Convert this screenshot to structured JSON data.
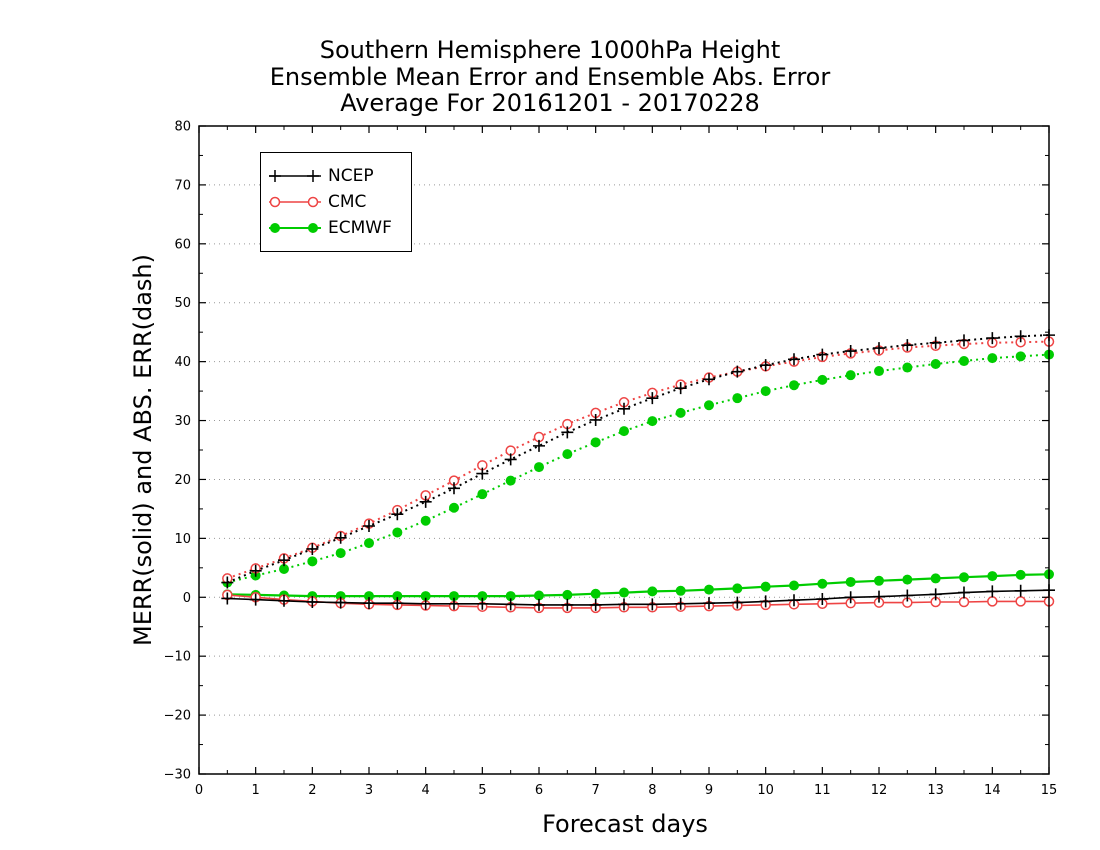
{
  "chart_data": {
    "type": "line",
    "title": [
      "Southern Hemisphere 1000hPa Height",
      "Ensemble Mean Error and Ensemble Abs. Error",
      "Average For 20161201 - 20170228"
    ],
    "xlabel": "Forecast days",
    "ylabel": "MERR(solid) and ABS. ERR(dash)",
    "xlim": [
      0,
      15
    ],
    "ylim": [
      -30,
      80
    ],
    "x_ticks": [
      "0",
      "1",
      "2",
      "3",
      "4",
      "5",
      "6",
      "7",
      "8",
      "9",
      "10",
      "11",
      "12",
      "13",
      "14",
      "15"
    ],
    "y_ticks": [
      "80",
      "70",
      "60",
      "50",
      "40",
      "30",
      "20",
      "10",
      "0",
      "−10",
      "−20",
      "−30"
    ],
    "grid": "horizontal dotted",
    "legend_position": "top-left",
    "x": [
      0.5,
      1,
      1.5,
      2,
      2.5,
      3,
      3.5,
      4,
      4.5,
      5,
      5.5,
      6,
      6.5,
      7,
      7.5,
      8,
      8.5,
      9,
      9.5,
      10,
      10.5,
      11,
      11.5,
      12,
      12.5,
      13,
      13.5,
      14,
      14.5,
      15
    ],
    "series": [
      {
        "name": "NCEP",
        "color": "#000000",
        "marker": "plus",
        "mean_error_solid": [
          -0.2,
          -0.4,
          -0.6,
          -0.8,
          -0.9,
          -1.0,
          -1.0,
          -1.1,
          -1.1,
          -1.1,
          -1.2,
          -1.3,
          -1.3,
          -1.3,
          -1.2,
          -1.2,
          -1.1,
          -1.0,
          -0.9,
          -0.7,
          -0.5,
          -0.3,
          0.0,
          0.1,
          0.3,
          0.5,
          0.8,
          1.0,
          1.1,
          1.2
        ],
        "abs_error_dash": [
          2.5,
          4.5,
          6.3,
          8.2,
          10.1,
          12.1,
          14.1,
          16.2,
          18.5,
          21.0,
          23.4,
          25.7,
          28.0,
          30.1,
          32.0,
          33.8,
          35.5,
          37.0,
          38.3,
          39.4,
          40.4,
          41.2,
          41.8,
          42.3,
          42.8,
          43.2,
          43.6,
          44.0,
          44.3,
          44.5
        ]
      },
      {
        "name": "CMC",
        "color": "#ee4444",
        "marker": "open-circle",
        "mean_error_solid": [
          0.4,
          0.0,
          -0.4,
          -0.7,
          -1.0,
          -1.2,
          -1.3,
          -1.4,
          -1.5,
          -1.6,
          -1.7,
          -1.8,
          -1.8,
          -1.8,
          -1.7,
          -1.7,
          -1.6,
          -1.5,
          -1.4,
          -1.3,
          -1.2,
          -1.1,
          -1.0,
          -0.9,
          -0.9,
          -0.8,
          -0.8,
          -0.7,
          -0.7,
          -0.7
        ],
        "abs_error_dash": [
          3.2,
          4.9,
          6.6,
          8.4,
          10.4,
          12.5,
          14.8,
          17.3,
          19.8,
          22.4,
          24.9,
          27.2,
          29.4,
          31.3,
          33.1,
          34.7,
          36.1,
          37.3,
          38.3,
          39.2,
          40.0,
          40.8,
          41.4,
          41.9,
          42.4,
          42.7,
          43.0,
          43.2,
          43.3,
          43.4
        ]
      },
      {
        "name": "ECMWF",
        "color": "#00cc00",
        "marker": "filled-circle",
        "mean_error_solid": [
          0.5,
          0.4,
          0.3,
          0.2,
          0.2,
          0.2,
          0.2,
          0.2,
          0.2,
          0.2,
          0.2,
          0.3,
          0.4,
          0.6,
          0.8,
          1.0,
          1.1,
          1.3,
          1.5,
          1.8,
          2.0,
          2.3,
          2.6,
          2.8,
          3.0,
          3.2,
          3.4,
          3.6,
          3.8,
          3.9
        ],
        "abs_error_dash": [
          2.5,
          3.7,
          4.8,
          6.1,
          7.5,
          9.2,
          11.0,
          13.0,
          15.2,
          17.5,
          19.8,
          22.1,
          24.3,
          26.3,
          28.2,
          29.9,
          31.3,
          32.6,
          33.8,
          35.0,
          36.0,
          36.9,
          37.7,
          38.4,
          39.0,
          39.6,
          40.1,
          40.6,
          40.9,
          41.2
        ]
      }
    ]
  }
}
